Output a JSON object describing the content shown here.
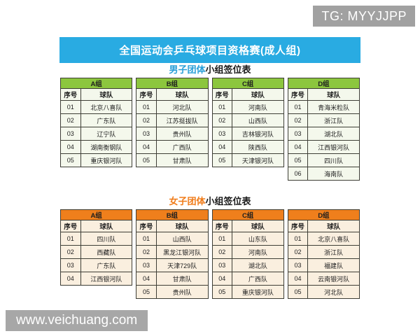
{
  "badge": {
    "text": "TG: MYYJJPP",
    "bg": "#a1a1a1"
  },
  "banner": {
    "title": "全国运动会乒乓球项目资格赛(成人组)",
    "color": "#29abe2"
  },
  "watermark": {
    "text": "www.veichuang.com",
    "bg": "#a7a7a7"
  },
  "columns": {
    "no": "序号",
    "team": "球队"
  },
  "sections": [
    {
      "id": "men",
      "title_colored": "男子团体",
      "title_rest": "小组签位表",
      "theme": {
        "header_bg": "#8cc63e",
        "cell_bg": "#f4f8ec",
        "title_color": "#2a9fd8"
      },
      "groups": [
        {
          "name": "A组",
          "rows": [
            {
              "no": "01",
              "team": "北京八喜队"
            },
            {
              "no": "02",
              "team": "广东队"
            },
            {
              "no": "03",
              "team": "辽宁队"
            },
            {
              "no": "04",
              "team": "湖南衡钢队"
            },
            {
              "no": "05",
              "team": "重庆银河队"
            }
          ]
        },
        {
          "name": "B组",
          "rows": [
            {
              "no": "01",
              "team": "河北队"
            },
            {
              "no": "02",
              "team": "江苏挺拔队"
            },
            {
              "no": "03",
              "team": "贵州队"
            },
            {
              "no": "04",
              "team": "广西队"
            },
            {
              "no": "05",
              "team": "甘肃队"
            }
          ]
        },
        {
          "name": "C组",
          "rows": [
            {
              "no": "01",
              "team": "河南队"
            },
            {
              "no": "02",
              "team": "山西队"
            },
            {
              "no": "03",
              "team": "吉林银河队"
            },
            {
              "no": "04",
              "team": "陕西队"
            },
            {
              "no": "05",
              "team": "天津银河队"
            }
          ]
        },
        {
          "name": "D组",
          "rows": [
            {
              "no": "01",
              "team": "青海米粒队"
            },
            {
              "no": "02",
              "team": "浙江队"
            },
            {
              "no": "03",
              "team": "湖北队"
            },
            {
              "no": "04",
              "team": "江西银河队"
            },
            {
              "no": "05",
              "team": "四川队"
            },
            {
              "no": "06",
              "team": "海南队"
            }
          ]
        }
      ]
    },
    {
      "id": "women",
      "title_colored": "女子团体",
      "title_rest": "小组签位表",
      "theme": {
        "header_bg": "#ef7f1c",
        "cell_bg": "#faefdf",
        "title_color": "#f07c1a"
      },
      "groups": [
        {
          "name": "A组",
          "rows": [
            {
              "no": "01",
              "team": "四川队"
            },
            {
              "no": "02",
              "team": "西藏队"
            },
            {
              "no": "03",
              "team": "广东队"
            },
            {
              "no": "04",
              "team": "江西银河队"
            }
          ]
        },
        {
          "name": "B组",
          "rows": [
            {
              "no": "01",
              "team": "山西队"
            },
            {
              "no": "02",
              "team": "黑龙江银河队"
            },
            {
              "no": "03",
              "team": "天津729队"
            },
            {
              "no": "04",
              "team": "甘肃队"
            },
            {
              "no": "05",
              "team": "贵州队"
            }
          ]
        },
        {
          "name": "C组",
          "rows": [
            {
              "no": "01",
              "team": "山东队"
            },
            {
              "no": "02",
              "team": "河南队"
            },
            {
              "no": "03",
              "team": "湖北队"
            },
            {
              "no": "04",
              "team": "广西队"
            },
            {
              "no": "05",
              "team": "重庆银河队"
            }
          ]
        },
        {
          "name": "D组",
          "rows": [
            {
              "no": "01",
              "team": "北京八喜队"
            },
            {
              "no": "02",
              "team": "浙江队"
            },
            {
              "no": "03",
              "team": "福建队"
            },
            {
              "no": "04",
              "team": "云南银河队"
            },
            {
              "no": "05",
              "team": "河北队"
            }
          ]
        }
      ]
    }
  ],
  "layout_tops": {
    "men": "92px",
    "women": "280px"
  }
}
